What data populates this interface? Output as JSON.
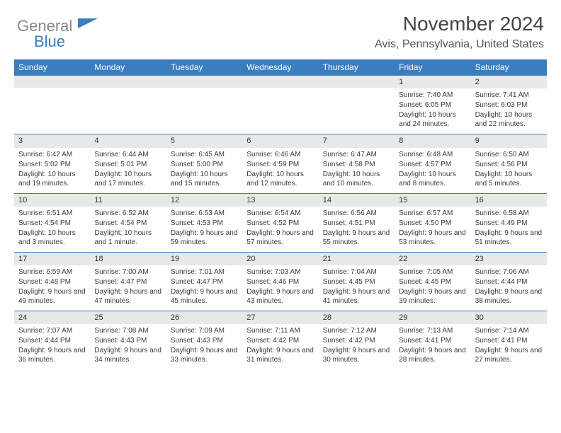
{
  "logo": {
    "line1": "General",
    "line2": "Blue",
    "gray_color": "#888888",
    "blue_color": "#3a7ebf"
  },
  "title": "November 2024",
  "location": "Avis, Pennsylvania, United States",
  "header_bg": "#3a7ebf",
  "header_text_color": "#ffffff",
  "daynum_bg": "#e8e8e8",
  "border_color": "#3a7ebf",
  "text_color": "#3a3a3a",
  "day_names": [
    "Sunday",
    "Monday",
    "Tuesday",
    "Wednesday",
    "Thursday",
    "Friday",
    "Saturday"
  ],
  "weeks": [
    [
      null,
      null,
      null,
      null,
      null,
      {
        "n": "1",
        "sr": "7:40 AM",
        "ss": "6:05 PM",
        "dl": "10 hours and 24 minutes."
      },
      {
        "n": "2",
        "sr": "7:41 AM",
        "ss": "6:03 PM",
        "dl": "10 hours and 22 minutes."
      }
    ],
    [
      {
        "n": "3",
        "sr": "6:42 AM",
        "ss": "5:02 PM",
        "dl": "10 hours and 19 minutes."
      },
      {
        "n": "4",
        "sr": "6:44 AM",
        "ss": "5:01 PM",
        "dl": "10 hours and 17 minutes."
      },
      {
        "n": "5",
        "sr": "6:45 AM",
        "ss": "5:00 PM",
        "dl": "10 hours and 15 minutes."
      },
      {
        "n": "6",
        "sr": "6:46 AM",
        "ss": "4:59 PM",
        "dl": "10 hours and 12 minutes."
      },
      {
        "n": "7",
        "sr": "6:47 AM",
        "ss": "4:58 PM",
        "dl": "10 hours and 10 minutes."
      },
      {
        "n": "8",
        "sr": "6:48 AM",
        "ss": "4:57 PM",
        "dl": "10 hours and 8 minutes."
      },
      {
        "n": "9",
        "sr": "6:50 AM",
        "ss": "4:56 PM",
        "dl": "10 hours and 5 minutes."
      }
    ],
    [
      {
        "n": "10",
        "sr": "6:51 AM",
        "ss": "4:54 PM",
        "dl": "10 hours and 3 minutes."
      },
      {
        "n": "11",
        "sr": "6:52 AM",
        "ss": "4:54 PM",
        "dl": "10 hours and 1 minute."
      },
      {
        "n": "12",
        "sr": "6:53 AM",
        "ss": "4:53 PM",
        "dl": "9 hours and 59 minutes."
      },
      {
        "n": "13",
        "sr": "6:54 AM",
        "ss": "4:52 PM",
        "dl": "9 hours and 57 minutes."
      },
      {
        "n": "14",
        "sr": "6:56 AM",
        "ss": "4:51 PM",
        "dl": "9 hours and 55 minutes."
      },
      {
        "n": "15",
        "sr": "6:57 AM",
        "ss": "4:50 PM",
        "dl": "9 hours and 53 minutes."
      },
      {
        "n": "16",
        "sr": "6:58 AM",
        "ss": "4:49 PM",
        "dl": "9 hours and 51 minutes."
      }
    ],
    [
      {
        "n": "17",
        "sr": "6:59 AM",
        "ss": "4:48 PM",
        "dl": "9 hours and 49 minutes."
      },
      {
        "n": "18",
        "sr": "7:00 AM",
        "ss": "4:47 PM",
        "dl": "9 hours and 47 minutes."
      },
      {
        "n": "19",
        "sr": "7:01 AM",
        "ss": "4:47 PM",
        "dl": "9 hours and 45 minutes."
      },
      {
        "n": "20",
        "sr": "7:03 AM",
        "ss": "4:46 PM",
        "dl": "9 hours and 43 minutes."
      },
      {
        "n": "21",
        "sr": "7:04 AM",
        "ss": "4:45 PM",
        "dl": "9 hours and 41 minutes."
      },
      {
        "n": "22",
        "sr": "7:05 AM",
        "ss": "4:45 PM",
        "dl": "9 hours and 39 minutes."
      },
      {
        "n": "23",
        "sr": "7:06 AM",
        "ss": "4:44 PM",
        "dl": "9 hours and 38 minutes."
      }
    ],
    [
      {
        "n": "24",
        "sr": "7:07 AM",
        "ss": "4:44 PM",
        "dl": "9 hours and 36 minutes."
      },
      {
        "n": "25",
        "sr": "7:08 AM",
        "ss": "4:43 PM",
        "dl": "9 hours and 34 minutes."
      },
      {
        "n": "26",
        "sr": "7:09 AM",
        "ss": "4:43 PM",
        "dl": "9 hours and 33 minutes."
      },
      {
        "n": "27",
        "sr": "7:11 AM",
        "ss": "4:42 PM",
        "dl": "9 hours and 31 minutes."
      },
      {
        "n": "28",
        "sr": "7:12 AM",
        "ss": "4:42 PM",
        "dl": "9 hours and 30 minutes."
      },
      {
        "n": "29",
        "sr": "7:13 AM",
        "ss": "4:41 PM",
        "dl": "9 hours and 28 minutes."
      },
      {
        "n": "30",
        "sr": "7:14 AM",
        "ss": "4:41 PM",
        "dl": "9 hours and 27 minutes."
      }
    ]
  ]
}
